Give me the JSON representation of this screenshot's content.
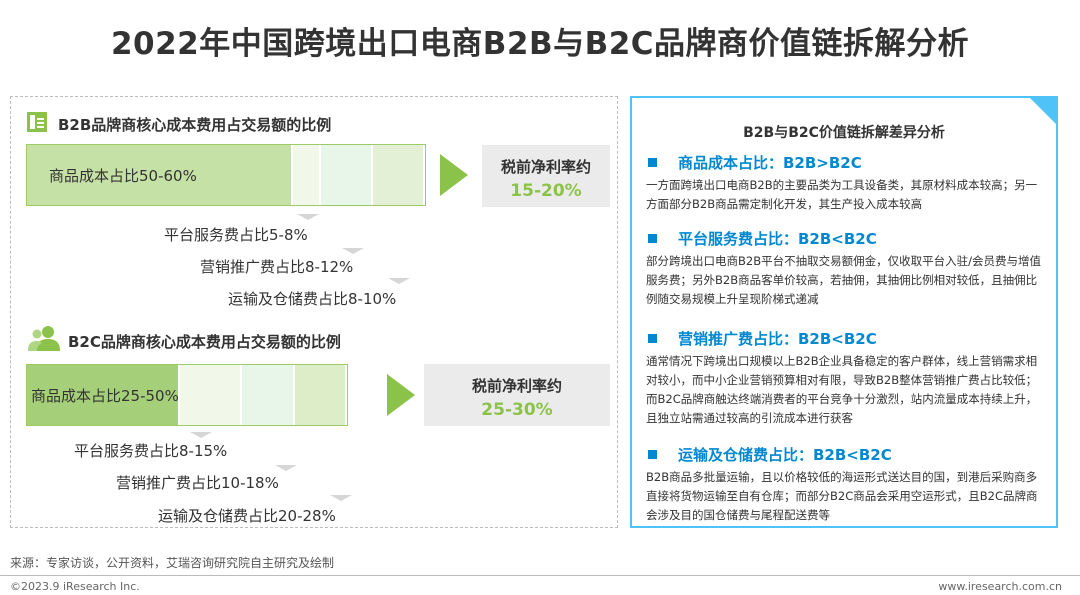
{
  "title": "2022年中国跨境出口电商B2B与B2C品牌商价值链拆解分析",
  "b2b": {
    "heading": "B2B品牌商核心成本费用占交易额的比例",
    "icon": "building-icon",
    "main_label": "商品成本占比50-60%",
    "profit_label": "税前净利率约",
    "profit_value": "15-20%",
    "fees": [
      "平台服务费占比5-8%",
      "营销推广费占比8-12%",
      "运输及仓储费占比8-10%"
    ]
  },
  "b2c": {
    "heading": "B2C品牌商核心成本费用占交易额的比例",
    "icon": "users-icon",
    "main_label": "商品成本占比25-50%",
    "profit_label": "税前净利率约",
    "profit_value": "25-30%",
    "fees": [
      "平台服务费占比8-15%",
      "营销推广费占比10-18%",
      "运输及仓储费占比20-28%"
    ]
  },
  "right": {
    "title": "B2B与B2C价值链拆解差异分析",
    "items": [
      {
        "head": "商品成本占比：B2B>B2C",
        "body": "一方面跨境出口电商B2B的主要品类为工具设备类，其原材料成本较高；另一方面部分B2B商品需定制化开发，其生产投入成本较高"
      },
      {
        "head": "平台服务费占比：B2B<B2C",
        "body": "部分跨境出口电商B2B平台不抽取交易额佣金，仅收取平台入驻/会员费与增值服务费；另外B2B商品客单价较高，若抽佣，其抽佣比例相对较低，且抽佣比例随交易规模上升呈现阶梯式递减"
      },
      {
        "head": "营销推广费占比：B2B<B2C",
        "body": "通常情况下跨境出口规模以上B2B企业具备稳定的客户群体，线上营销需求相对较小，而中小企业营销预算相对有限，导致B2B整体营销推广费占比较低；而B2C品牌商触达终端消费者的平台竞争十分激烈，站内流量成本持续上升，且独立站需通过较高的引流成本进行获客"
      },
      {
        "head": "运输及仓储费占比：B2B<B2C",
        "body": "B2B商品多批量运输，且以价格较低的海运形式送达目的国，到港后采购商多直接将货物运输至自有仓库；而部分B2C商品会采用空运形式，且B2C品牌商会涉及目的国仓储费与尾程配送费等"
      }
    ]
  },
  "footer": {
    "source": "来源：专家访谈，公开资料，艾瑞咨询研究院自主研究及绘制",
    "copyright": "©2023.9 iResearch Inc.",
    "website": "www.iresearch.com.cn"
  },
  "colors": {
    "green": "#8bc34a",
    "light_green": "#dcedc8",
    "blue": "#0288d1",
    "cyan": "#4fc3f7"
  }
}
